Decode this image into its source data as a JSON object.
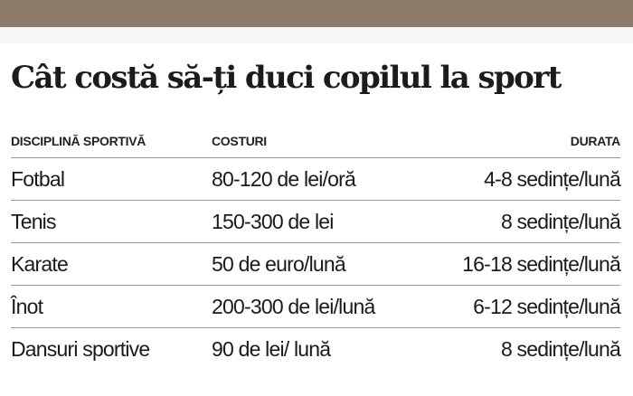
{
  "title": "Cât costă să-ți duci copilul la sport",
  "colors": {
    "top_band": "#8a7a66",
    "text": "#1a1a1a",
    "rule": "#9a9a9a"
  },
  "table": {
    "headers": {
      "discipline": "DISCIPLINĂ SPORTIVĂ",
      "cost": "COSTURI",
      "duration": "DURATA"
    },
    "rows": [
      {
        "discipline": "Fotbal",
        "cost": "80-120 de lei/oră",
        "duration": "4-8 sedințe/lună"
      },
      {
        "discipline": "Tenis",
        "cost": "150-300 de lei",
        "duration": "8 sedințe/lună"
      },
      {
        "discipline": "Karate",
        "cost": "50 de euro/lună",
        "duration": "16-18 sedințe/lună"
      },
      {
        "discipline": "Înot",
        "cost": "200-300 de lei/lună",
        "duration": "6-12 sedințe/lună"
      },
      {
        "discipline": "Dansuri sportive",
        "cost": "90 de lei/ lună",
        "duration": "8 sedințe/lună"
      }
    ]
  }
}
